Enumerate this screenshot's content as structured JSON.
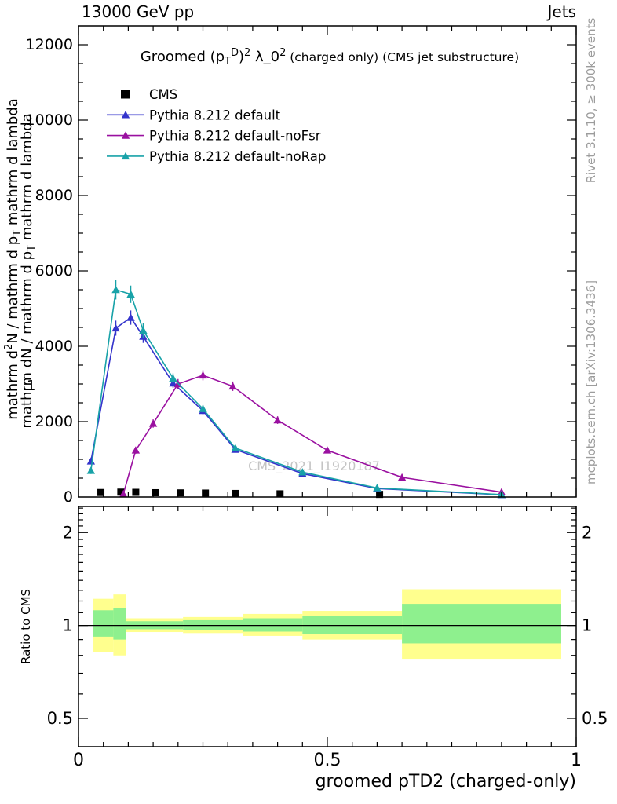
{
  "header": {
    "left": "13000 GeV pp",
    "right": "Jets"
  },
  "right_margin": {
    "top": "Rivet 3.1.10, ≥ 300k events",
    "bottom": "mcplots.cern.ch [arXiv:1306.3436]"
  },
  "watermark": "CMS_2021_I1920187",
  "left_axis": {
    "line1": "mathrm d^{2}N / mathrm d p_{T} mathrm d lambda",
    "line2": "mathrm dN / mathrm d p_{T} mathrm d lambda",
    "one": "1"
  },
  "chart_data": {
    "type": "line",
    "title": "Groomed (p_{T}^{D})^{2} λ_0^{2}",
    "title_note": "  (charged only) (CMS jet substructure)",
    "xlabel": "groomed pTD2 (charged-only)",
    "xlim": [
      0,
      1
    ],
    "ylim": [
      0,
      12500
    ],
    "yticks": [
      0,
      2000,
      4000,
      6000,
      8000,
      10000,
      12000
    ],
    "xticks": [
      0,
      0.5,
      1
    ],
    "grid": false,
    "legend_position": "top-left",
    "colors": {
      "cms": "#000000",
      "pythia_default": "#3434cc",
      "pythia_noFsr": "#9a10a0",
      "pythia_noRap": "#18a2a8",
      "band_yellow": "#ffff8e",
      "band_green": "#8ef08e"
    },
    "series": [
      {
        "name": "CMS",
        "marker": "square",
        "color": "#000000",
        "points": [
          [
            0.045,
            120
          ],
          [
            0.085,
            130
          ],
          [
            0.115,
            125
          ],
          [
            0.155,
            115
          ],
          [
            0.205,
            110
          ],
          [
            0.255,
            105
          ],
          [
            0.315,
            95
          ],
          [
            0.405,
            85
          ],
          [
            0.605,
            70
          ]
        ]
      },
      {
        "name": "Pythia 8.212 default",
        "marker": "triangle",
        "color": "#3434cc",
        "points": [
          [
            0.025,
            950,
            80
          ],
          [
            0.075,
            4480,
            200
          ],
          [
            0.105,
            4760,
            190
          ],
          [
            0.13,
            4260,
            170
          ],
          [
            0.19,
            3020,
            120
          ],
          [
            0.25,
            2290,
            95
          ],
          [
            0.315,
            1260,
            65
          ],
          [
            0.45,
            620,
            40
          ],
          [
            0.6,
            225,
            25
          ],
          [
            0.85,
            60,
            14
          ]
        ]
      },
      {
        "name": "Pythia 8.212 default-noFsr",
        "marker": "triangle",
        "color": "#9a10a0",
        "points": [
          [
            0.09,
            80,
            25
          ],
          [
            0.115,
            1240,
            90
          ],
          [
            0.15,
            1950,
            110
          ],
          [
            0.2,
            3000,
            130
          ],
          [
            0.25,
            3230,
            135
          ],
          [
            0.31,
            2940,
            125
          ],
          [
            0.4,
            2040,
            100
          ],
          [
            0.5,
            1240,
            75
          ],
          [
            0.65,
            520,
            45
          ],
          [
            0.85,
            130,
            22
          ]
        ]
      },
      {
        "name": "Pythia 8.212 default-noRap",
        "marker": "triangle",
        "color": "#18a2a8",
        "points": [
          [
            0.025,
            700,
            90
          ],
          [
            0.075,
            5500,
            260
          ],
          [
            0.105,
            5380,
            230
          ],
          [
            0.13,
            4420,
            190
          ],
          [
            0.19,
            3150,
            130
          ],
          [
            0.25,
            2340,
            100
          ],
          [
            0.315,
            1300,
            70
          ],
          [
            0.45,
            660,
            45
          ],
          [
            0.6,
            240,
            28
          ],
          [
            0.85,
            65,
            15
          ]
        ]
      }
    ],
    "ratio": {
      "label": "Ratio to CMS",
      "scale": "log",
      "ylim": [
        0.405,
        2.43
      ],
      "yticks": [
        0.5,
        1,
        2
      ],
      "bands": [
        {
          "x0": 0.03,
          "x1": 0.07,
          "yellow": [
            0.82,
            1.22
          ],
          "green": [
            0.92,
            1.12
          ]
        },
        {
          "x0": 0.07,
          "x1": 0.095,
          "yellow": [
            0.8,
            1.26
          ],
          "green": [
            0.9,
            1.14
          ]
        },
        {
          "x0": 0.095,
          "x1": 0.21,
          "yellow": [
            0.952,
            1.055
          ],
          "green": [
            0.972,
            1.032
          ]
        },
        {
          "x0": 0.21,
          "x1": 0.33,
          "yellow": [
            0.945,
            1.065
          ],
          "green": [
            0.968,
            1.04
          ]
        },
        {
          "x0": 0.33,
          "x1": 0.45,
          "yellow": [
            0.925,
            1.09
          ],
          "green": [
            0.955,
            1.055
          ]
        },
        {
          "x0": 0.45,
          "x1": 0.65,
          "yellow": [
            0.9,
            1.115
          ],
          "green": [
            0.94,
            1.075
          ]
        },
        {
          "x0": 0.65,
          "x1": 0.97,
          "yellow": [
            0.78,
            1.31
          ],
          "green": [
            0.875,
            1.175
          ]
        }
      ]
    }
  }
}
